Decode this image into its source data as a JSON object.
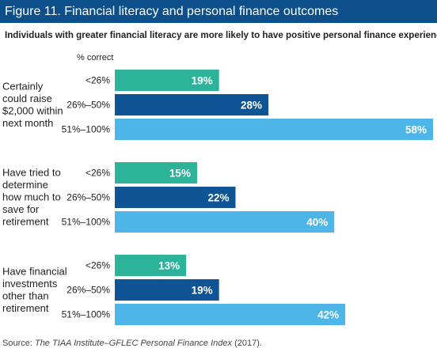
{
  "title": "Figure 11. Financial literacy and personal finance outcomes",
  "subtitle": "Individuals with greater financial literacy are more likely to have positive personal finance experiences.",
  "source": {
    "prefix": "Source: ",
    "italic": "The TIAA Institute–GFLEC Personal Finance Index",
    "suffix": " (2017)."
  },
  "chart_data": {
    "type": "bar",
    "orientation": "horizontal",
    "column_header": "% correct",
    "categories": [
      "<26%",
      "26%–50%",
      "51%–100%"
    ],
    "colors": [
      "#2db39a",
      "#0f5596",
      "#4db5e8"
    ],
    "xlim": [
      0,
      58
    ],
    "groups": [
      {
        "label": [
          "Certainly",
          "could raise",
          "$2,000 within",
          "next month"
        ],
        "values": [
          19,
          28,
          58
        ]
      },
      {
        "label": [
          "Have tried to",
          "determine",
          "how much to",
          "save for",
          "retirement"
        ],
        "values": [
          15,
          22,
          40
        ]
      },
      {
        "label": [
          "Have financial",
          "investments",
          "other than",
          "retirement"
        ],
        "values": [
          13,
          19,
          42
        ]
      }
    ],
    "value_suffix": "%"
  }
}
